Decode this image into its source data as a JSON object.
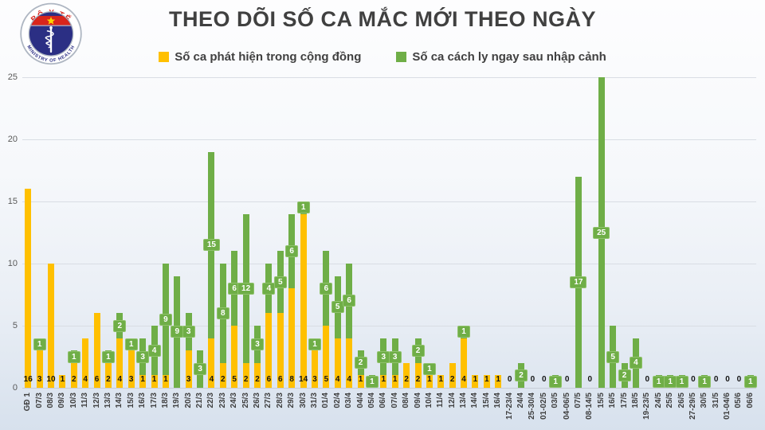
{
  "logo": {
    "top_text": "BỘ Y TẾ",
    "bottom_text": "MINISTRY OF HEALTH"
  },
  "title": "THEO DÕI SỐ CA MẮC MỚI THEO NGÀY",
  "legend": {
    "community": "Số ca phát hiện trong cộng đồng",
    "quarantine": "Số ca cách ly ngay sau nhập cảnh"
  },
  "colors": {
    "community": "#FFC000",
    "quarantine": "#6FAE47",
    "badge_border": "#8FC26B",
    "title_text": "#404040",
    "axis_text": "#595959",
    "bar_value_text": "#141414",
    "logo_red": "#D9251C",
    "logo_navy": "#2B2F84",
    "logo_star": "#FFD400"
  },
  "chart_data": {
    "type": "bar",
    "stacked": true,
    "title": "THEO DÕI SỐ CA MẮC MỚI THEO NGÀY",
    "xlabel": "",
    "ylabel": "",
    "ylim": [
      0,
      25
    ],
    "yticks": [
      0,
      5,
      10,
      15,
      20,
      25
    ],
    "grid": "horizontal",
    "legend_position": "top",
    "categories": [
      "GĐ 1",
      "07/3",
      "08/3",
      "09/3",
      "10/3",
      "11/3",
      "12/3",
      "13/3",
      "14/3",
      "15/3",
      "16/3",
      "17/3",
      "18/3",
      "19/3",
      "20/3",
      "21/3",
      "22/3",
      "23/3",
      "24/3",
      "25/3",
      "26/3",
      "27/3",
      "28/3",
      "29/3",
      "30/3",
      "31/3",
      "01/4",
      "02/4",
      "03/4",
      "04/4",
      "05/4",
      "06/4",
      "07/4",
      "08/4",
      "09/4",
      "10/4",
      "11/4",
      "12/4",
      "13/4",
      "14/4",
      "15/4",
      "16/4",
      "17-23/4",
      "24/4",
      "25-30/4",
      "01-02/5",
      "03/5",
      "04-06/5",
      "07/5",
      "08-14/5",
      "15/5",
      "16/5",
      "17/5",
      "18/5",
      "19-23/5",
      "24/5",
      "25/5",
      "26/5",
      "27-29/5",
      "30/5",
      "31/5",
      "01-04/6",
      "05/6",
      "06/6"
    ],
    "series": [
      {
        "name": "Số ca phát hiện trong cộng đồng",
        "color": "#FFC000",
        "values": [
          16,
          3,
          10,
          1,
          2,
          4,
          6,
          2,
          4,
          3,
          1,
          1,
          1,
          0,
          3,
          0,
          4,
          2,
          5,
          2,
          2,
          6,
          6,
          8,
          14,
          3,
          5,
          4,
          4,
          1,
          0,
          1,
          1,
          2,
          2,
          1,
          1,
          2,
          4,
          1,
          1,
          1,
          0,
          0,
          0,
          0,
          0,
          0,
          0,
          0,
          0,
          0,
          0,
          0,
          0,
          0,
          0,
          0,
          0,
          0,
          0,
          0,
          0,
          0
        ]
      },
      {
        "name": "Số ca cách ly ngay sau nhập cảnh",
        "color": "#6FAE47",
        "values": [
          0,
          1,
          0,
          0,
          1,
          0,
          0,
          1,
          2,
          1,
          3,
          4,
          9,
          9,
          3,
          3,
          15,
          8,
          6,
          12,
          3,
          4,
          5,
          6,
          1,
          1,
          6,
          5,
          6,
          2,
          1,
          3,
          3,
          0,
          2,
          1,
          0,
          0,
          1,
          0,
          0,
          0,
          0,
          2,
          0,
          0,
          1,
          0,
          17,
          0,
          25,
          5,
          2,
          4,
          0,
          1,
          1,
          1,
          0,
          1,
          0,
          0,
          0,
          1
        ]
      }
    ]
  }
}
